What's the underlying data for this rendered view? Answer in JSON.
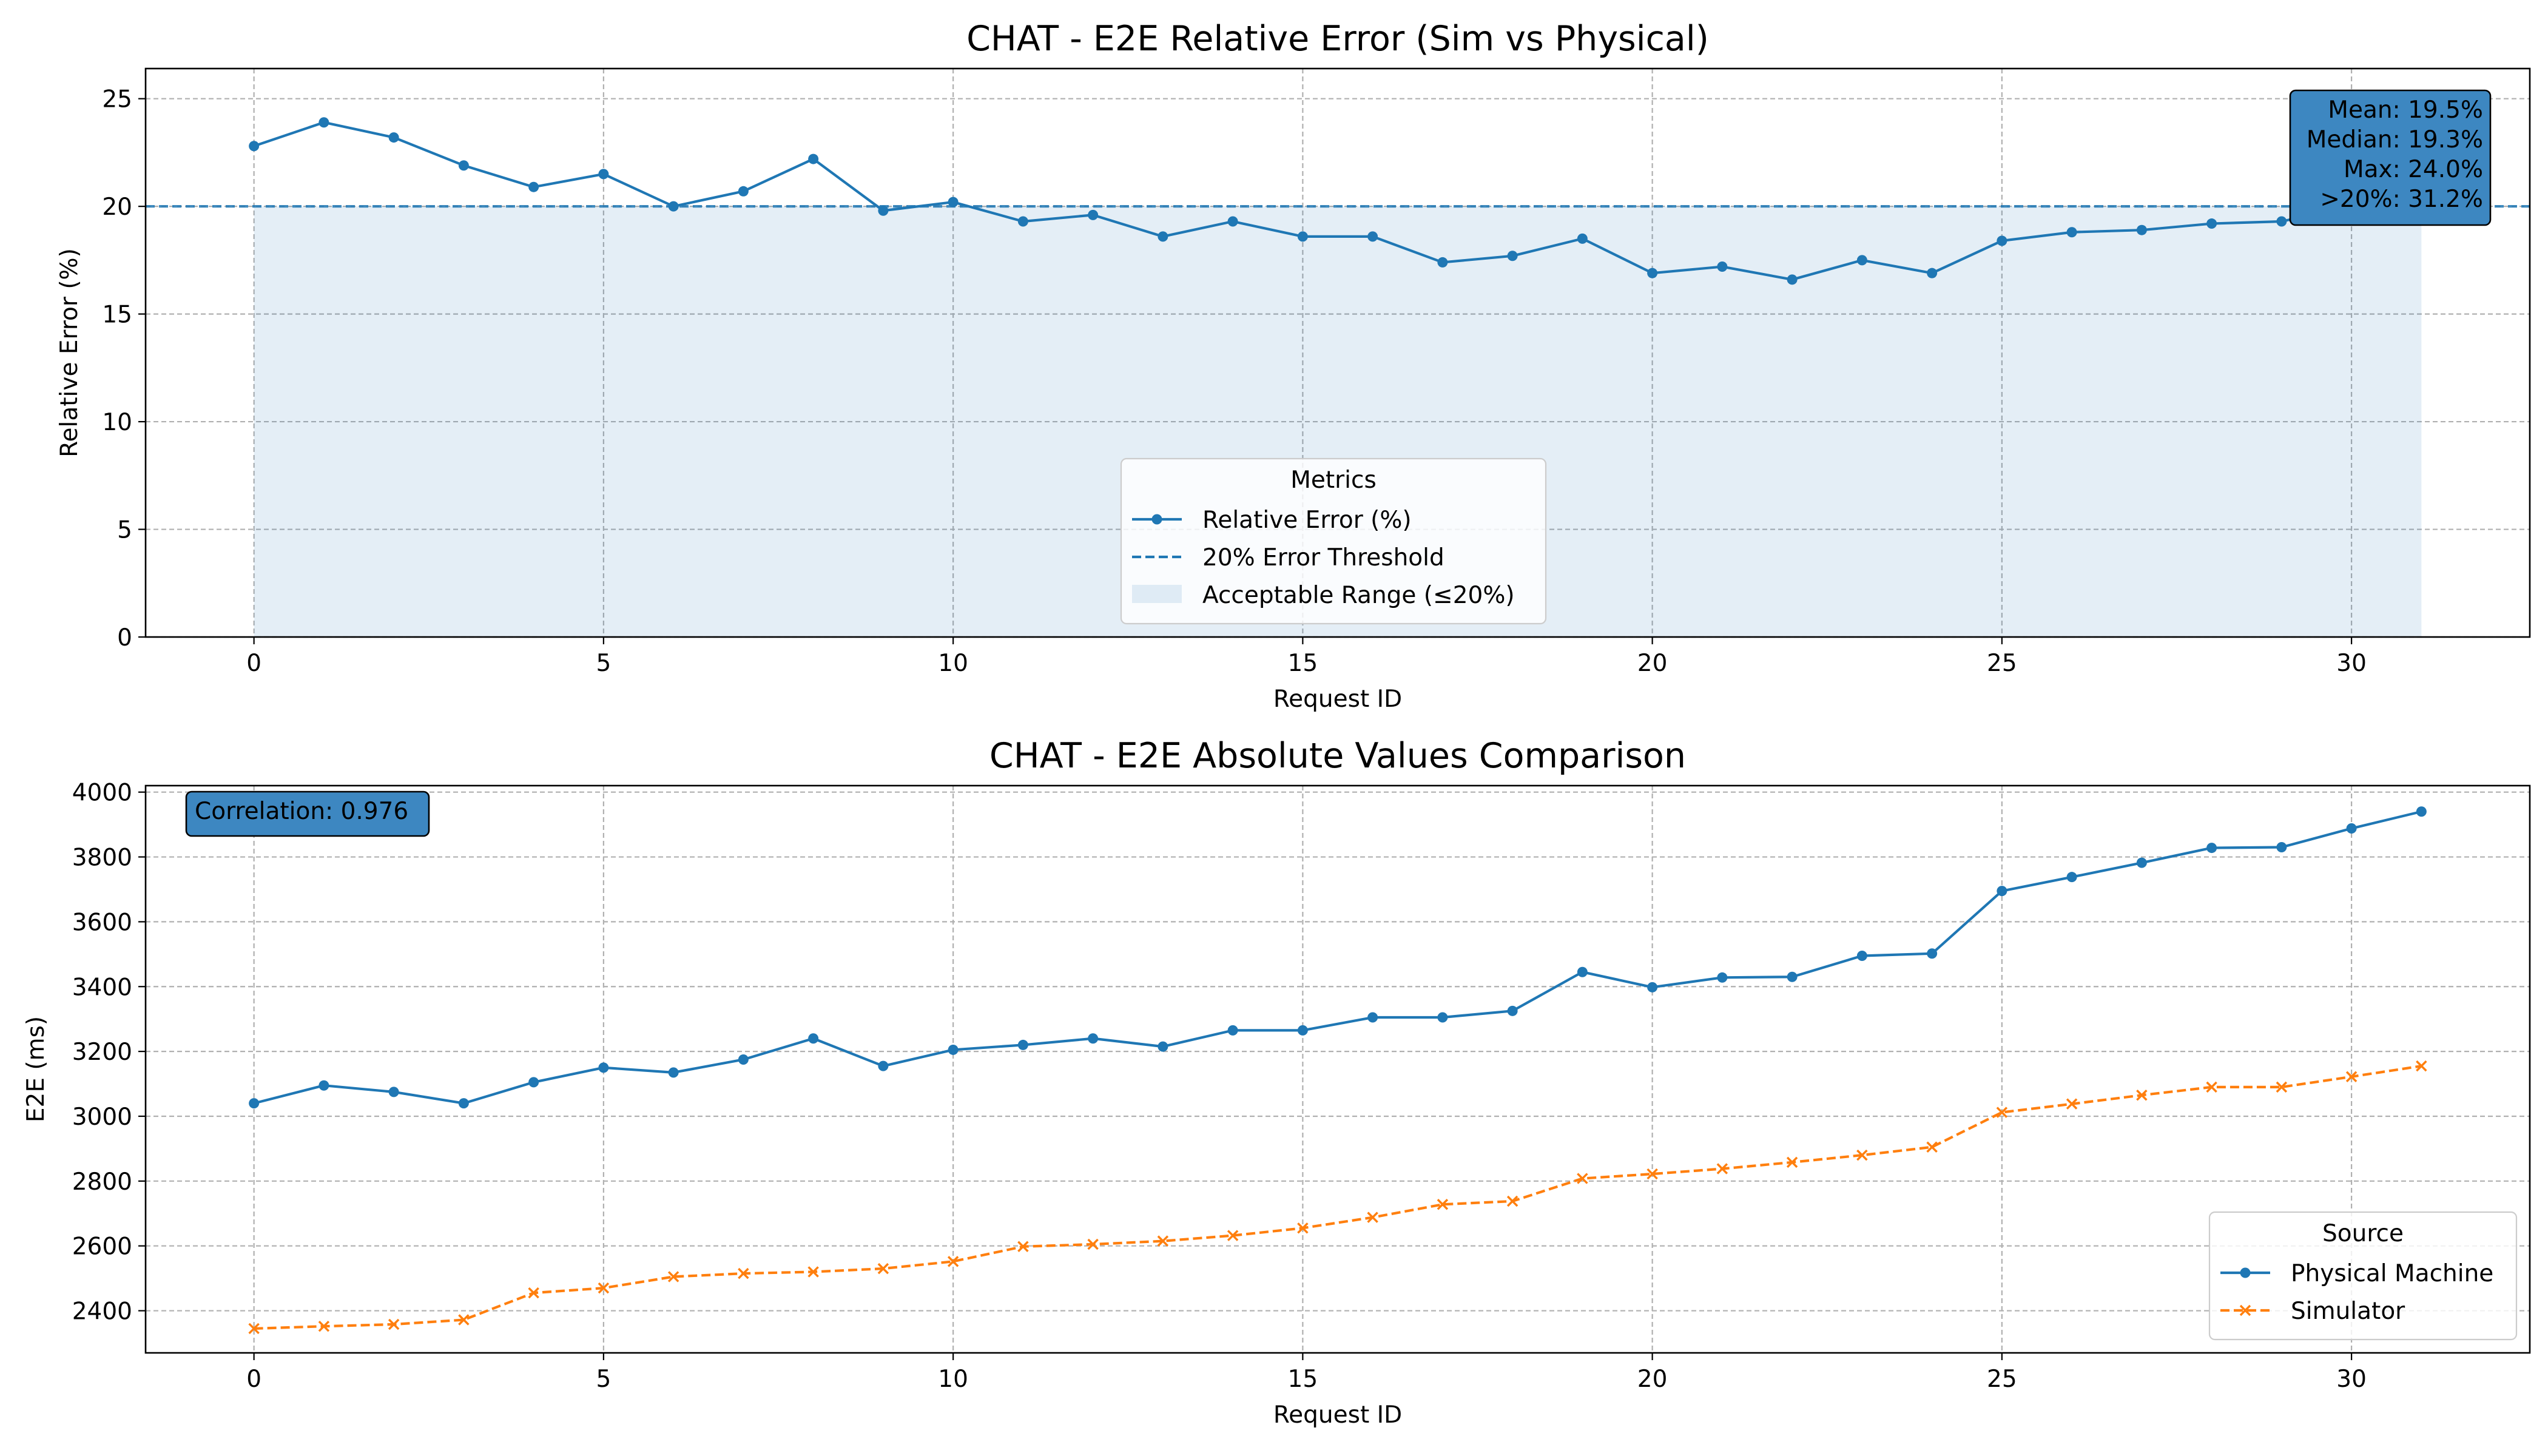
{
  "chart_data": [
    {
      "type": "line",
      "title": "CHAT - E2E Relative Error (Sim vs Physical)",
      "xlabel": "Request ID",
      "ylabel": "Relative Error (%)",
      "xlim": [
        -1.55,
        32.55
      ],
      "ylim": [
        0,
        26.4
      ],
      "xticks": [
        0,
        5,
        10,
        15,
        20,
        25,
        30
      ],
      "yticks": [
        0,
        5,
        10,
        15,
        20,
        25
      ],
      "grid": true,
      "x": [
        0,
        1,
        2,
        3,
        4,
        5,
        6,
        7,
        8,
        9,
        10,
        11,
        12,
        13,
        14,
        15,
        16,
        17,
        18,
        19,
        20,
        21,
        22,
        23,
        24,
        25,
        26,
        27,
        28,
        29,
        30,
        31
      ],
      "series": [
        {
          "name": "Relative Error (%)",
          "color": "#1f77b4",
          "style": "solid",
          "marker": "circle",
          "values": [
            22.8,
            23.9,
            23.2,
            21.9,
            20.9,
            21.5,
            20.0,
            20.7,
            22.2,
            19.8,
            20.2,
            19.3,
            19.6,
            18.6,
            19.3,
            18.6,
            18.6,
            17.4,
            17.7,
            18.5,
            16.9,
            17.2,
            16.6,
            17.5,
            16.9,
            18.4,
            18.8,
            18.9,
            19.2,
            19.3,
            20.0,
            19.9
          ]
        }
      ],
      "threshold": {
        "name": "20% Error Threshold",
        "value": 20,
        "color": "#1f77b4",
        "style": "dashed"
      },
      "band": {
        "name": "Acceptable Range (≤20%)",
        "from": 0,
        "to": 20,
        "x_from": 0,
        "x_to": 31,
        "color": "#1f77b4"
      },
      "legend": {
        "title": "Metrics",
        "position": "bottom-center"
      },
      "stats_box": {
        "position": "top-right",
        "color": "#3d87c1",
        "lines": [
          "Mean: 19.5%",
          "Median: 19.3%",
          "Max: 24.0%",
          ">20%: 31.2%"
        ]
      }
    },
    {
      "type": "line",
      "title": "CHAT - E2E Absolute Values Comparison",
      "xlabel": "Request ID",
      "ylabel": "E2E (ms)",
      "xlim": [
        -1.55,
        32.55
      ],
      "ylim": [
        2270,
        4020
      ],
      "xticks": [
        0,
        5,
        10,
        15,
        20,
        25,
        30
      ],
      "yticks": [
        2400,
        2600,
        2800,
        3000,
        3200,
        3400,
        3600,
        3800,
        4000
      ],
      "grid": true,
      "x": [
        0,
        1,
        2,
        3,
        4,
        5,
        6,
        7,
        8,
        9,
        10,
        11,
        12,
        13,
        14,
        15,
        16,
        17,
        18,
        19,
        20,
        21,
        22,
        23,
        24,
        25,
        26,
        27,
        28,
        29,
        30,
        31
      ],
      "series": [
        {
          "name": "Physical Machine",
          "color": "#1f77b4",
          "style": "solid",
          "marker": "circle",
          "values": [
            3040,
            3095,
            3075,
            3040,
            3105,
            3150,
            3135,
            3175,
            3240,
            3155,
            3205,
            3220,
            3240,
            3215,
            3265,
            3265,
            3305,
            3305,
            3325,
            3445,
            3398,
            3428,
            3430,
            3495,
            3502,
            3695,
            3738,
            3782,
            3828,
            3830,
            3888,
            3940
          ]
        },
        {
          "name": "Simulator",
          "color": "#ff7f0e",
          "style": "dashed",
          "marker": "x",
          "values": [
            2345,
            2352,
            2358,
            2372,
            2455,
            2470,
            2505,
            2515,
            2520,
            2530,
            2552,
            2598,
            2605,
            2615,
            2632,
            2655,
            2688,
            2728,
            2738,
            2808,
            2822,
            2838,
            2858,
            2880,
            2905,
            3012,
            3038,
            3065,
            3090,
            3090,
            3122,
            3155
          ]
        }
      ],
      "legend": {
        "title": "Source",
        "position": "bottom-right"
      },
      "stats_box": {
        "position": "top-left",
        "color": "#3d87c1",
        "lines": [
          "Correlation: 0.976"
        ]
      }
    }
  ]
}
